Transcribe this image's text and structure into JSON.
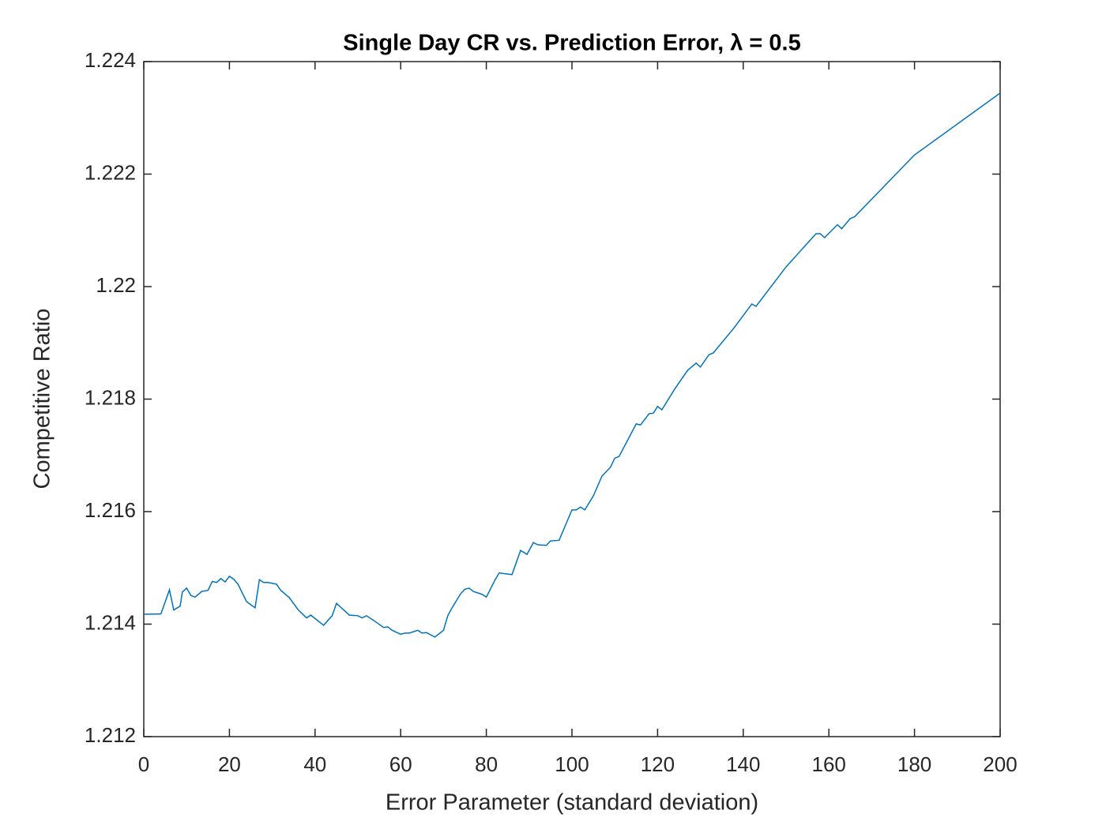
{
  "chart_data": {
    "type": "line",
    "title": "Single Day CR vs. Prediction Error, λ = 0.5",
    "x_label": "Error Parameter (standard deviation)",
    "y_label": "Competitive Ratio",
    "xlim": [
      0,
      200
    ],
    "xticks": [
      0,
      20,
      40,
      60,
      80,
      100,
      120,
      140,
      160,
      180,
      200
    ],
    "ylim": [
      1.212,
      1.224
    ],
    "yticks": [
      1.212,
      1.214,
      1.216,
      1.218,
      1.22,
      1.222,
      1.224
    ],
    "color": "#0072bd",
    "x": [
      0,
      4,
      6,
      7,
      8.5,
      9,
      10,
      11,
      12,
      13.5,
      15,
      16,
      17,
      18,
      19,
      20,
      21,
      22,
      24,
      26,
      27,
      28,
      29,
      31,
      32,
      34,
      36,
      38,
      39,
      42,
      44,
      45,
      47,
      48,
      50,
      51,
      52,
      54,
      56,
      57,
      58,
      60,
      61,
      62,
      64,
      65,
      66,
      68,
      70,
      71,
      72,
      74,
      75,
      76,
      77,
      79,
      80,
      82,
      83,
      85,
      86,
      88,
      89.5,
      91,
      92,
      94,
      95,
      97,
      100,
      101,
      102,
      103,
      105,
      107,
      109,
      110,
      111,
      115,
      116,
      118,
      119,
      120,
      121,
      124,
      127,
      129,
      130,
      132,
      133,
      138,
      142,
      143,
      150,
      157,
      158,
      159,
      162,
      163,
      165,
      166,
      180,
      200
    ],
    "values": [
      1.214175,
      1.21418,
      1.21461,
      1.21425,
      1.21432,
      1.21457,
      1.21464,
      1.21451,
      1.21448,
      1.21458,
      1.2146,
      1.21476,
      1.21474,
      1.21481,
      1.21475,
      1.21485,
      1.2148,
      1.21471,
      1.2144,
      1.21429,
      1.21479,
      1.21474,
      1.21474,
      1.21471,
      1.2146,
      1.21447,
      1.21426,
      1.21411,
      1.21416,
      1.21398,
      1.21415,
      1.21437,
      1.21423,
      1.21416,
      1.21415,
      1.21411,
      1.21415,
      1.21405,
      1.21394,
      1.21395,
      1.21389,
      1.21382,
      1.21384,
      1.21384,
      1.21389,
      1.21384,
      1.21385,
      1.21377,
      1.21389,
      1.21415,
      1.21429,
      1.21454,
      1.21462,
      1.21464,
      1.21458,
      1.21453,
      1.21448,
      1.21478,
      1.21491,
      1.21489,
      1.21488,
      1.21531,
      1.21524,
      1.21545,
      1.21541,
      1.2154,
      1.21548,
      1.21549,
      1.21603,
      1.21603,
      1.21608,
      1.21603,
      1.21628,
      1.21663,
      1.21679,
      1.21695,
      1.21698,
      1.21756,
      1.21754,
      1.21774,
      1.21775,
      1.21787,
      1.21781,
      1.21818,
      1.21851,
      1.21864,
      1.21857,
      1.21879,
      1.21882,
      1.21928,
      1.21969,
      1.21965,
      1.22035,
      1.22094,
      1.22094,
      1.22087,
      1.2211,
      1.22103,
      1.22121,
      1.22124,
      1.22234,
      1.22344
    ]
  }
}
